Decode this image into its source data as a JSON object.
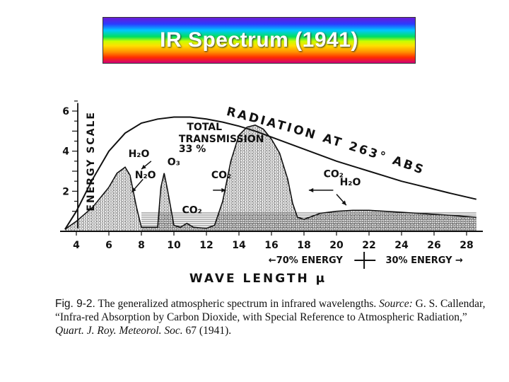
{
  "title": "IR Spectrum (1941)",
  "chart_data": {
    "type": "area",
    "title": "",
    "xlabel": "WAVE LENGTH μ",
    "ylabel": "ENERGY SCALE",
    "xlim": [
      3,
      29
    ],
    "ylim": [
      0,
      6.6
    ],
    "x_ticks": [
      4,
      6,
      8,
      10,
      12,
      14,
      16,
      18,
      20,
      22,
      24,
      26,
      28
    ],
    "y_ticks": [
      2,
      4,
      6
    ],
    "series": [
      {
        "name": "RADIATION AT 263° ABS",
        "x": [
          3.3,
          4,
          5,
          6,
          7,
          8,
          9,
          10,
          11,
          12,
          13,
          14,
          15,
          16,
          17,
          18,
          19,
          20,
          21,
          22,
          23,
          24,
          25,
          26,
          27,
          28.6
        ],
        "y": [
          0.1,
          1.0,
          2.6,
          4.0,
          4.9,
          5.4,
          5.6,
          5.7,
          5.7,
          5.6,
          5.45,
          5.25,
          5.0,
          4.7,
          4.4,
          4.1,
          3.8,
          3.5,
          3.25,
          3.0,
          2.75,
          2.5,
          2.3,
          2.1,
          1.9,
          1.6
        ]
      },
      {
        "name": "TOTAL TRANSMISSION 33 %",
        "x": [
          3.3,
          4,
          5,
          6,
          6.5,
          7,
          7.3,
          7.7,
          8,
          8.6,
          9,
          9.2,
          9.4,
          9.6,
          10,
          10.4,
          10.8,
          11.2,
          12,
          12.5,
          13,
          13.5,
          14,
          14.5,
          15,
          15.5,
          16,
          16.5,
          17,
          17.3,
          17.6,
          18,
          19,
          20,
          21,
          22,
          23,
          24,
          25,
          26,
          27,
          28.6
        ],
        "y": [
          0.1,
          0.5,
          1.2,
          2.2,
          2.9,
          3.2,
          2.8,
          1.2,
          0.2,
          0.2,
          0.2,
          2.2,
          2.9,
          2.1,
          0.3,
          0.2,
          0.4,
          0.2,
          0.15,
          0.3,
          1.5,
          3.5,
          4.8,
          5.2,
          5.3,
          5.1,
          4.6,
          3.9,
          2.6,
          1.4,
          0.7,
          0.6,
          0.9,
          1.0,
          1.05,
          1.05,
          1.0,
          0.95,
          0.9,
          0.85,
          0.8,
          0.7
        ]
      }
    ],
    "annotations": [
      {
        "text": "TOTAL",
        "x": 10.8,
        "y": 5.05
      },
      {
        "text": "TRANSMISSION",
        "x": 10.3,
        "y": 4.45
      },
      {
        "text": "33 %",
        "x": 10.3,
        "y": 3.95
      },
      {
        "text": "H₂O",
        "x": 7.2,
        "y": 3.7
      },
      {
        "text": "N₂O",
        "x": 7.6,
        "y": 2.65
      },
      {
        "text": "O₃",
        "x": 9.6,
        "y": 3.3
      },
      {
        "text": "CO₂",
        "x": 10.5,
        "y": 0.9
      },
      {
        "text": "CO₂",
        "x": 12.3,
        "y": 2.65
      },
      {
        "text": "CO₂",
        "x": 19.2,
        "y": 2.7
      },
      {
        "text": "H₂O",
        "x": 20.2,
        "y": 2.3
      }
    ],
    "radiation_label": "RADIATION AT 263° ABS",
    "energy_split": {
      "left": "←70% ENERGY",
      "right": "30% ENERGY →"
    }
  },
  "caption": {
    "figure_label": "Fig. 9-2.",
    "figure_text": "The generalized atmospheric spectrum in infrared wavelengths.",
    "source_label": "Source:",
    "source_author": "G. S. Callendar, “Infra-red Absorption by Carbon Dioxide, with Special Reference to Atmospheric Radiation,”",
    "journal": "Quart. J. Roy. Meteorol. Soc.",
    "volume_year": "67 (1941)."
  }
}
